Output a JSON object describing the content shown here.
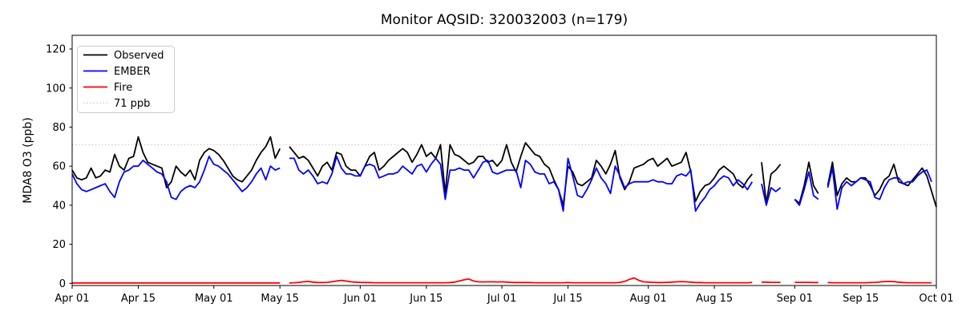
{
  "figure": {
    "background": "#ffffff"
  },
  "legend": {
    "items": [
      {
        "label": "Observed",
        "color": "#000000",
        "style": "solid"
      },
      {
        "label": "EMBER",
        "color": "#0000ff",
        "style": "solid"
      },
      {
        "label": "Fire",
        "color": "#ff0000",
        "style": "solid"
      },
      {
        "label": "71 ppb",
        "color": "#d3d3d3",
        "style": "dotted"
      }
    ]
  },
  "chart_data": {
    "type": "line",
    "title": "Monitor AQSID: 320032003 (n=179)",
    "xlabel": "",
    "ylabel": "MDA8 O3 (ppb)",
    "ylim": [
      0,
      125
    ],
    "yticks": [
      0,
      20,
      40,
      60,
      80,
      100,
      120
    ],
    "x_start": "Apr 01",
    "x_end": "Oct 01",
    "x_range_days": 183,
    "x_tick_days": [
      0,
      14,
      30,
      44,
      61,
      75,
      91,
      105,
      122,
      136,
      153,
      167,
      183
    ],
    "x_tick_labels": [
      "Apr 01",
      "Apr 15",
      "May 01",
      "May 15",
      "Jun 01",
      "Jun 15",
      "Jul 01",
      "Jul 15",
      "Aug 01",
      "Aug 15",
      "Sep 01",
      "Sep 15",
      "Oct 01"
    ],
    "grid": false,
    "legend_position": "upper-left",
    "threshold": {
      "value": 71,
      "label": "71 ppb",
      "color": "#d3d3d3",
      "style": "dotted"
    },
    "series": [
      {
        "name": "Observed",
        "color": "#000000",
        "values": [
          58,
          54,
          53,
          54,
          59,
          54,
          55,
          58,
          57,
          66,
          60,
          58,
          64,
          65,
          75,
          67,
          62,
          61,
          60,
          59,
          49,
          52,
          60,
          57,
          55,
          58,
          53,
          63,
          67,
          69,
          68,
          66,
          63,
          59,
          55,
          53,
          52,
          55,
          58,
          63,
          67,
          70,
          75,
          64,
          69,
          null,
          70,
          67,
          64,
          65,
          63,
          59,
          55,
          60,
          62,
          58,
          67,
          66,
          60,
          58,
          58,
          55,
          60,
          65,
          67,
          58,
          60,
          63,
          65,
          67,
          69,
          67,
          62,
          66,
          71,
          65,
          67,
          64,
          71,
          46,
          71,
          66,
          65,
          63,
          61,
          62,
          65,
          65,
          62,
          63,
          60,
          63,
          71,
          62,
          57,
          65,
          72,
          69,
          66,
          65,
          61,
          59,
          53,
          48,
          40,
          60,
          57,
          51,
          50,
          52,
          54,
          63,
          60,
          56,
          61,
          68,
          54,
          48,
          52,
          59,
          60,
          61,
          63,
          64,
          60,
          62,
          64,
          60,
          61,
          62,
          67,
          57,
          42,
          47,
          50,
          51,
          54,
          58,
          60,
          58,
          56,
          51,
          49,
          53,
          56,
          null,
          62,
          41,
          56,
          58,
          61,
          null,
          null,
          43,
          41,
          50,
          62,
          50,
          46,
          null,
          50,
          62,
          45,
          51,
          54,
          52,
          52,
          54,
          54,
          50,
          45,
          48,
          53,
          55,
          61,
          52,
          51,
          50,
          53,
          56,
          59,
          55,
          47,
          39
        ]
      },
      {
        "name": "EMBER",
        "color": "#0000ff",
        "values": [
          56,
          51,
          48,
          47,
          48,
          49,
          50,
          51,
          47,
          44,
          52,
          57,
          58,
          60,
          60,
          63,
          61,
          59,
          57,
          56,
          52,
          44,
          43,
          47,
          49,
          50,
          49,
          52,
          58,
          65,
          61,
          60,
          58,
          56,
          53,
          50,
          47,
          49,
          52,
          56,
          59,
          53,
          60,
          58,
          59,
          null,
          64,
          64,
          58,
          56,
          58,
          55,
          51,
          52,
          51,
          56,
          65,
          59,
          56,
          56,
          55,
          55,
          60,
          61,
          60,
          54,
          55,
          56,
          56,
          57,
          60,
          58,
          56,
          60,
          61,
          57,
          61,
          64,
          61,
          43,
          58,
          58,
          59,
          58,
          58,
          54,
          58,
          62,
          63,
          57,
          56,
          57,
          58,
          58,
          58,
          49,
          63,
          61,
          57,
          56,
          56,
          51,
          52,
          48,
          37,
          64,
          55,
          45,
          44,
          48,
          53,
          59,
          54,
          51,
          46,
          60,
          55,
          49,
          51,
          52,
          52,
          52,
          52,
          53,
          52,
          52,
          51,
          51,
          55,
          56,
          55,
          58,
          37,
          41,
          44,
          48,
          50,
          53,
          55,
          54,
          50,
          53,
          51,
          48,
          52,
          null,
          51,
          40,
          49,
          47,
          49,
          null,
          null,
          43,
          40,
          48,
          57,
          45,
          43,
          null,
          49,
          59,
          38,
          49,
          52,
          50,
          52,
          54,
          53,
          52,
          44,
          43,
          49,
          53,
          54,
          54,
          51,
          52,
          52,
          55,
          57,
          58,
          52,
          null
        ]
      },
      {
        "name": "Fire",
        "color": "#ff0000",
        "values": [
          0.2,
          0.2,
          0.2,
          0.2,
          0.2,
          0.2,
          0.2,
          0.2,
          0.2,
          0.2,
          0.2,
          0.2,
          0.2,
          0.2,
          0.2,
          0.2,
          0.2,
          0.2,
          0.2,
          0.2,
          0.2,
          0.2,
          0.2,
          0.2,
          0.2,
          0.2,
          0.2,
          0.2,
          0.2,
          0.2,
          0.2,
          0.2,
          0.2,
          0.2,
          0.2,
          0.2,
          0.2,
          0.2,
          0.2,
          0.2,
          0.2,
          0.2,
          0.2,
          0.2,
          0.2,
          null,
          0.2,
          0.3,
          0.5,
          0.8,
          1,
          0.6,
          0.4,
          0.4,
          0.5,
          0.8,
          1.2,
          1.5,
          1.2,
          0.8,
          0.6,
          0.5,
          0.4,
          0.4,
          0.3,
          0.3,
          0.3,
          0.3,
          0.3,
          0.3,
          0.3,
          0.3,
          0.3,
          0.3,
          0.3,
          0.3,
          0.3,
          0.3,
          0.3,
          0.3,
          0.4,
          0.6,
          1.2,
          1.8,
          2.2,
          1.2,
          0.8,
          0.7,
          0.8,
          0.8,
          0.7,
          0.8,
          0.6,
          0.5,
          0.4,
          0.4,
          0.4,
          0.4,
          0.3,
          0.3,
          0.3,
          0.3,
          0.3,
          0.3,
          0.3,
          0.4,
          0.3,
          0.3,
          0.3,
          0.3,
          0.3,
          0.3,
          0.3,
          0.3,
          0.3,
          0.3,
          0.5,
          1,
          2,
          2.8,
          1.5,
          0.8,
          0.6,
          0.5,
          0.4,
          0.4,
          0.5,
          0.6,
          0.8,
          0.9,
          0.8,
          0.6,
          0.4,
          0.4,
          0.3,
          0.3,
          0.3,
          0.3,
          0.3,
          0.3,
          0.3,
          0.3,
          0.3,
          0.3,
          0.5,
          null,
          0.6,
          0.6,
          0.5,
          0.5,
          0.5,
          null,
          null,
          0.5,
          0.5,
          0.5,
          0.5,
          0.4,
          0.4,
          null,
          0.4,
          0.3,
          0.3,
          0.3,
          0.3,
          0.3,
          0.3,
          0.3,
          0.3,
          0.4,
          0.5,
          0.7,
          0.9,
          1,
          0.9,
          0.6,
          0.4,
          0.3,
          0.3,
          0.3,
          0.3,
          0.3,
          0.3,
          null
        ]
      }
    ]
  }
}
